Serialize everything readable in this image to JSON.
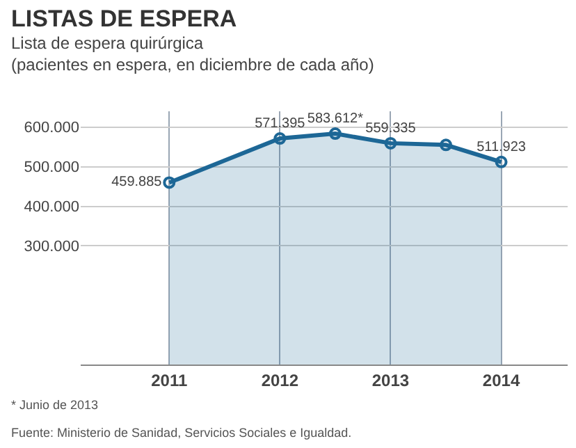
{
  "chart_data": {
    "type": "area",
    "title": "LISTAS DE ESPERA",
    "subtitle": "Lista de espera quirúrgica\n(pacientes en espera, en diciembre de cada año)",
    "x": [
      2011,
      2012,
      2012.5,
      2013,
      2013.5,
      2014
    ],
    "series": [
      {
        "color": "#1d6796",
        "values": [
          459885,
          571395,
          583612,
          559335,
          555000,
          511923
        ],
        "value_labels": [
          "459.885",
          "571.395",
          "583.612*",
          "559.335",
          null,
          "511.923"
        ]
      }
    ],
    "xlim": [
      2010.2,
      2014.6
    ],
    "xticks": [
      2011,
      2012,
      2013,
      2014
    ],
    "ylim": [
      0,
      640000
    ],
    "yticks": [
      {
        "value": 300000,
        "label": "300.000"
      },
      {
        "value": 400000,
        "label": "400.000"
      },
      {
        "value": 500000,
        "label": "500.000"
      },
      {
        "value": 600000,
        "label": "600.000"
      }
    ],
    "grid": true,
    "marker": "circle",
    "line_style": "solid",
    "annotations": [
      "* Junio de 2013",
      "Fuente: Ministerio de Sanidad, Servicios Sociales e Igualdad."
    ]
  }
}
